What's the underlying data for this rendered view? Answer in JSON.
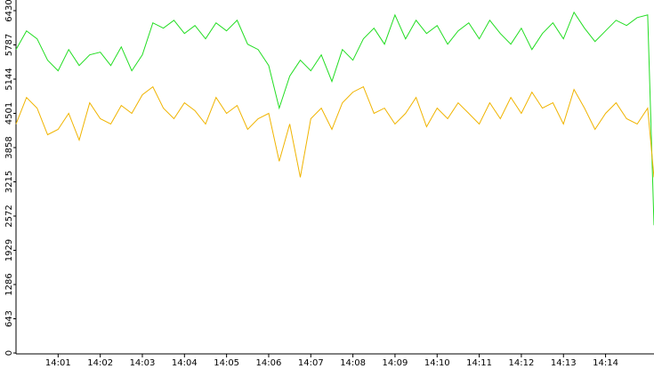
{
  "chart_data": {
    "type": "line",
    "x": [
      0,
      0.25,
      0.5,
      0.75,
      1,
      1.25,
      1.5,
      1.75,
      2,
      2.25,
      2.5,
      2.75,
      3,
      3.25,
      3.5,
      3.75,
      4,
      4.25,
      4.5,
      4.75,
      5,
      5.25,
      5.5,
      5.75,
      6,
      6.25,
      6.5,
      6.75,
      7,
      7.25,
      7.5,
      7.75,
      8,
      8.25,
      8.5,
      8.75,
      9,
      9.25,
      9.5,
      9.75,
      10,
      10.25,
      10.5,
      10.75,
      11,
      11.25,
      11.5,
      11.75,
      12,
      12.25,
      12.5,
      12.75,
      13,
      13.25,
      13.5,
      13.75,
      14,
      14.25,
      14.5,
      14.75,
      15,
      15.15
    ],
    "series": [
      {
        "color": "#22dd22",
        "values": [
          5700,
          6050,
          5900,
          5500,
          5300,
          5700,
          5400,
          5600,
          5650,
          5400,
          5750,
          5300,
          5600,
          6200,
          6100,
          6250,
          6000,
          6150,
          5900,
          6200,
          6050,
          6250,
          5800,
          5700,
          5400,
          4600,
          5200,
          5500,
          5300,
          5600,
          5100,
          5700,
          5500,
          5900,
          6100,
          5800,
          6350,
          5900,
          6250,
          6000,
          6150,
          5800,
          6050,
          6200,
          5900,
          6250,
          6000,
          5800,
          6100,
          5700,
          6000,
          6200,
          5900,
          6400,
          6100,
          5850,
          6050,
          6250,
          6150,
          6300,
          6350,
          2400
        ]
      },
      {
        "color": "#f0b400",
        "values": [
          4300,
          4800,
          4600,
          4100,
          4200,
          4500,
          4000,
          4700,
          4400,
          4300,
          4650,
          4500,
          4850,
          5000,
          4600,
          4400,
          4700,
          4550,
          4300,
          4800,
          4500,
          4650,
          4200,
          4400,
          4500,
          3600,
          4300,
          3300,
          4400,
          4600,
          4200,
          4700,
          4900,
          5000,
          4500,
          4600,
          4300,
          4500,
          4800,
          4250,
          4600,
          4400,
          4700,
          4500,
          4300,
          4700,
          4400,
          4800,
          4500,
          4900,
          4600,
          4700,
          4300,
          4950,
          4600,
          4200,
          4500,
          4700,
          4400,
          4300,
          4600,
          3300
        ]
      }
    ],
    "xlim": [
      0,
      15.15
    ],
    "xticks": [
      {
        "value": 1,
        "label": "14:01"
      },
      {
        "value": 2,
        "label": "14:02"
      },
      {
        "value": 3,
        "label": "14:03"
      },
      {
        "value": 4,
        "label": "14:04"
      },
      {
        "value": 5,
        "label": "14:05"
      },
      {
        "value": 6,
        "label": "14:06"
      },
      {
        "value": 7,
        "label": "14:07"
      },
      {
        "value": 8,
        "label": "14:08"
      },
      {
        "value": 9,
        "label": "14:09"
      },
      {
        "value": 10,
        "label": "14:10"
      },
      {
        "value": 11,
        "label": "14:11"
      },
      {
        "value": 12,
        "label": "14:12"
      },
      {
        "value": 13,
        "label": "14:13"
      },
      {
        "value": 14,
        "label": "14:14"
      }
    ],
    "ylim": [
      0,
      6630
    ],
    "yticks": [
      0,
      643,
      1286,
      1929,
      2572,
      3215,
      3858,
      4501,
      5144,
      5787,
      6430
    ]
  }
}
